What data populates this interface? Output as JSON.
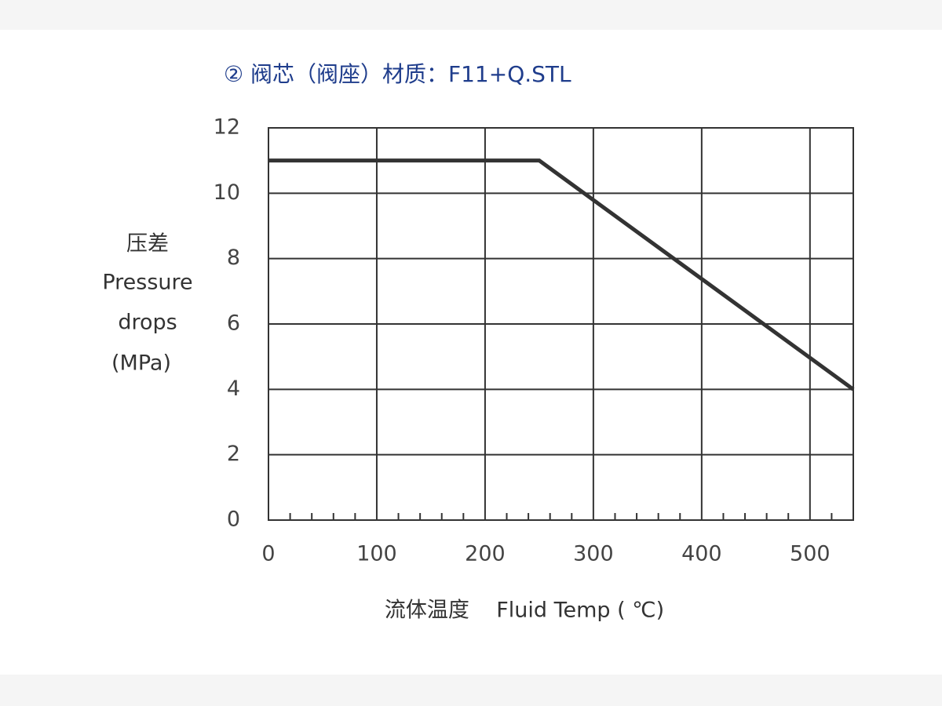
{
  "chart_data": {
    "type": "line",
    "title": "② 阀芯（阀座）材质：F11+Q.STL",
    "y_label": [
      "压差",
      "Pressure",
      "drops",
      "(MPa)"
    ],
    "x_label": "流体温度    Fluid Temp ( ℃)",
    "x": [
      0,
      250,
      540
    ],
    "values": [
      11,
      11,
      4
    ],
    "color": "#333333",
    "xlim": [
      0,
      540
    ],
    "xticks": [
      0,
      100,
      200,
      300,
      400,
      500
    ],
    "xminorticks": [
      20,
      40,
      60,
      80,
      120,
      140,
      160,
      180,
      220,
      240,
      260,
      280,
      320,
      340,
      360,
      380,
      420,
      440,
      460,
      480,
      520
    ],
    "ylim": [
      0,
      12
    ],
    "yticks": [
      0,
      2,
      4,
      6,
      8,
      10,
      12
    ],
    "grid": true
  }
}
